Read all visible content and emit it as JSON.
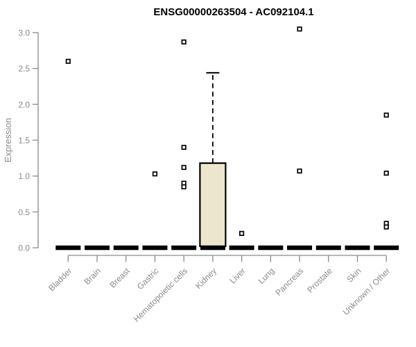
{
  "chart_data": {
    "type": "boxplot",
    "title": "ENSG00000263504 - AC092104.1",
    "ylabel": "Expression",
    "xlabel": "",
    "ylim": [
      0,
      3
    ],
    "yticks": [
      0.0,
      0.5,
      1.0,
      1.5,
      2.0,
      2.5,
      3.0
    ],
    "grid": false,
    "legend": null,
    "categories": [
      "Bladder",
      "Brain",
      "Breast",
      "Gastric",
      "Hematopoietic cells",
      "Kidney",
      "Liver",
      "Lung",
      "Pancreas",
      "Prostate",
      "Skin",
      "Unknown / Other"
    ],
    "boxes": [
      {
        "category": "Bladder",
        "q1": 0,
        "median": 0,
        "q3": 0,
        "whisker_low": 0,
        "whisker_high": 0,
        "outliers": [
          2.6
        ]
      },
      {
        "category": "Brain",
        "q1": 0,
        "median": 0,
        "q3": 0,
        "whisker_low": 0,
        "whisker_high": 0,
        "outliers": []
      },
      {
        "category": "Breast",
        "q1": 0,
        "median": 0,
        "q3": 0,
        "whisker_low": 0,
        "whisker_high": 0,
        "outliers": []
      },
      {
        "category": "Gastric",
        "q1": 0,
        "median": 0,
        "q3": 0,
        "whisker_low": 0,
        "whisker_high": 0,
        "outliers": [
          1.03
        ]
      },
      {
        "category": "Hematopoietic cells",
        "q1": 0,
        "median": 0,
        "q3": 0,
        "whisker_low": 0,
        "whisker_high": 0,
        "outliers": [
          2.87,
          1.4,
          1.12,
          0.9,
          0.85
        ]
      },
      {
        "category": "Kidney",
        "q1": 0,
        "median": 0,
        "q3": 1.18,
        "whisker_low": 0,
        "whisker_high": 2.44,
        "outliers": []
      },
      {
        "category": "Liver",
        "q1": 0,
        "median": 0,
        "q3": 0,
        "whisker_low": 0,
        "whisker_high": 0,
        "outliers": [
          0.2
        ]
      },
      {
        "category": "Lung",
        "q1": 0,
        "median": 0,
        "q3": 0,
        "whisker_low": 0,
        "whisker_high": 0,
        "outliers": []
      },
      {
        "category": "Pancreas",
        "q1": 0,
        "median": 0,
        "q3": 0,
        "whisker_low": 0,
        "whisker_high": 0,
        "outliers": [
          3.05,
          1.07
        ]
      },
      {
        "category": "Prostate",
        "q1": 0,
        "median": 0,
        "q3": 0,
        "whisker_low": 0,
        "whisker_high": 0,
        "outliers": []
      },
      {
        "category": "Skin",
        "q1": 0,
        "median": 0,
        "q3": 0,
        "whisker_low": 0,
        "whisker_high": 0,
        "outliers": []
      },
      {
        "category": "Unknown / Other",
        "q1": 0,
        "median": 0,
        "q3": 0,
        "whisker_low": 0,
        "whisker_high": 0,
        "outliers": [
          1.85,
          1.04,
          0.34,
          0.29
        ]
      }
    ],
    "colors": {
      "background": "#ffffff",
      "title_color": "#000000",
      "axis_color": "#8a8a8a",
      "label_color": "#8a8a8a",
      "box_fill": "#ece7cc",
      "box_stroke": "#000000",
      "median_color": "#000000",
      "whisker_color": "#000000",
      "outlier_stroke": "#000000",
      "outlier_fill": "#ffffff"
    }
  }
}
